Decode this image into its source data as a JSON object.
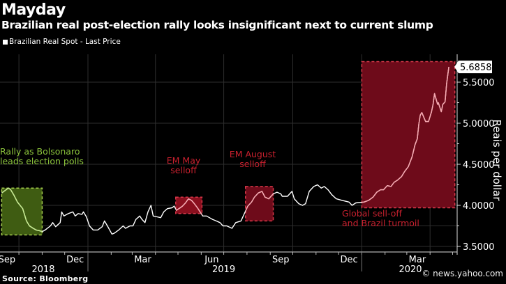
{
  "chart_data": {
    "type": "line",
    "title": "Mayday",
    "subtitle": "Brazilian real post-election rally looks insignificant next to current slump",
    "legend": [
      {
        "name": "Brazilian Real Spot - Last Price",
        "color": "#ffffff",
        "placement": "top-left"
      }
    ],
    "ylabel": "Reais per dollar",
    "ylim": [
      3.4,
      5.85
    ],
    "yticks": [
      "3.5000",
      "4.0000",
      "4.5000",
      "5.0000",
      "5.5000"
    ],
    "y_axis_side": "right",
    "grid": true,
    "xlim": [
      "2018-09-06",
      "2020-05-08"
    ],
    "xticks": [
      {
        "label": "Sep",
        "date": "2018-09-15"
      },
      {
        "label": "Dec",
        "date": "2018-12-15"
      },
      {
        "label": "Mar",
        "date": "2019-03-15"
      },
      {
        "label": "Jun",
        "date": "2019-06-15"
      },
      {
        "label": "Sep",
        "date": "2019-09-15"
      },
      {
        "label": "Dec",
        "date": "2019-12-15"
      },
      {
        "label": "Mar",
        "date": "2020-03-15"
      }
    ],
    "years": [
      {
        "label": "2018",
        "date": "2018-11-01"
      },
      {
        "label": "2019",
        "date": "2019-07-01"
      },
      {
        "label": "2020",
        "date": "2020-03-01"
      }
    ],
    "last_value_label": "5.6858",
    "series": [
      {
        "name": "Brazilian Real Spot - Last Price",
        "color": "#ffffff",
        "x": [
          "2018-09-08",
          "2018-09-11",
          "2018-09-17",
          "2018-09-20",
          "2018-09-24",
          "2018-09-29",
          "2018-10-06",
          "2018-10-11",
          "2018-10-15",
          "2018-10-20",
          "2018-10-24",
          "2018-10-29",
          "2018-11-01",
          "2018-11-05",
          "2018-11-12",
          "2018-11-15",
          "2018-11-19",
          "2018-11-25",
          "2018-11-27",
          "2018-11-30",
          "2018-12-06",
          "2018-12-12",
          "2018-12-15",
          "2018-12-19",
          "2018-12-24",
          "2018-12-26",
          "2018-12-30",
          "2019-01-03",
          "2019-01-08",
          "2019-01-14",
          "2019-01-20",
          "2019-01-23",
          "2019-01-27",
          "2019-02-02",
          "2019-02-05",
          "2019-02-11",
          "2019-02-17",
          "2019-02-20",
          "2019-02-26",
          "2019-03-02",
          "2019-03-06",
          "2019-03-11",
          "2019-03-14",
          "2019-03-18",
          "2019-03-22",
          "2019-03-26",
          "2019-03-29",
          "2019-04-03",
          "2019-04-08",
          "2019-04-12",
          "2019-04-17",
          "2019-04-23",
          "2019-04-26",
          "2019-04-29",
          "2019-05-04",
          "2019-05-07",
          "2019-05-11",
          "2019-05-15",
          "2019-05-19",
          "2019-05-22",
          "2019-05-27",
          "2019-06-03",
          "2019-06-08",
          "2019-06-12",
          "2019-06-16",
          "2019-06-21",
          "2019-06-26",
          "2019-06-30",
          "2019-07-05",
          "2019-07-12",
          "2019-07-17",
          "2019-07-24",
          "2019-07-28",
          "2019-08-02",
          "2019-08-07",
          "2019-08-11",
          "2019-08-16",
          "2019-08-21",
          "2019-08-25",
          "2019-08-30",
          "2019-09-05",
          "2019-09-10",
          "2019-09-15",
          "2019-09-17",
          "2019-09-24",
          "2019-09-30",
          "2019-10-03",
          "2019-10-09",
          "2019-10-14",
          "2019-10-18",
          "2019-10-23",
          "2019-10-29",
          "2019-11-03",
          "2019-11-08",
          "2019-11-12",
          "2019-11-17",
          "2019-11-22",
          "2019-11-28",
          "2019-12-06",
          "2019-12-15",
          "2019-12-19",
          "2019-12-24",
          "2020-01-04",
          "2020-01-10",
          "2020-01-16",
          "2020-01-21",
          "2020-01-26",
          "2020-01-30",
          "2020-02-04",
          "2020-02-09",
          "2020-02-13",
          "2020-02-18",
          "2020-02-23",
          "2020-02-27",
          "2020-03-03",
          "2020-03-08",
          "2020-03-12",
          "2020-03-15",
          "2020-03-17",
          "2020-03-19",
          "2020-03-21",
          "2020-03-26",
          "2020-03-30",
          "2020-04-03",
          "2020-04-05",
          "2020-04-07",
          "2020-04-11",
          "2020-04-12",
          "2020-04-16",
          "2020-04-18",
          "2020-04-21",
          "2020-04-23",
          "2020-04-26"
        ],
        "y": [
          4.15,
          4.17,
          4.21,
          4.19,
          4.13,
          4.04,
          3.96,
          3.81,
          3.75,
          3.72,
          3.7,
          3.69,
          3.68,
          3.7,
          3.75,
          3.79,
          3.74,
          3.79,
          3.92,
          3.87,
          3.9,
          3.92,
          3.87,
          3.9,
          3.89,
          3.92,
          3.86,
          3.75,
          3.7,
          3.7,
          3.74,
          3.81,
          3.75,
          3.65,
          3.66,
          3.7,
          3.75,
          3.72,
          3.75,
          3.75,
          3.83,
          3.87,
          3.83,
          3.79,
          3.92,
          4.0,
          3.87,
          3.86,
          3.85,
          3.92,
          3.96,
          3.97,
          3.99,
          3.94,
          3.97,
          3.99,
          4.03,
          4.08,
          4.06,
          4.03,
          3.97,
          3.87,
          3.87,
          3.85,
          3.83,
          3.81,
          3.79,
          3.75,
          3.75,
          3.72,
          3.79,
          3.81,
          3.89,
          3.99,
          4.04,
          4.1,
          4.15,
          4.17,
          4.1,
          4.08,
          4.14,
          4.16,
          4.14,
          4.11,
          4.11,
          4.17,
          4.08,
          4.02,
          4.0,
          4.02,
          4.17,
          4.23,
          4.25,
          4.21,
          4.23,
          4.19,
          4.13,
          4.08,
          4.06,
          4.04,
          4.0,
          4.03,
          4.04,
          4.06,
          4.1,
          4.16,
          4.19,
          4.19,
          4.24,
          4.23,
          4.28,
          4.31,
          4.35,
          4.41,
          4.47,
          4.59,
          4.74,
          4.81,
          4.99,
          5.1,
          5.13,
          5.02,
          5.02,
          5.14,
          5.23,
          5.36,
          5.23,
          5.25,
          5.14,
          5.23,
          5.26,
          5.48,
          5.6858
        ]
      }
    ],
    "annotations": [
      {
        "text_lines": [
          "Rally as Bolsonaro",
          "leads election polls"
        ],
        "color": "#8cc43c",
        "line_color": "#c6ec8e",
        "fill": "#3f5c12",
        "border": "#a4cc4c",
        "x_range": [
          "2018-09-08",
          "2018-11-01"
        ],
        "y_range": [
          3.64,
          4.21
        ]
      },
      {
        "text_lines": [
          "EM May",
          "selloff"
        ],
        "color": "#c8202e",
        "line_color": "#f7a8b0",
        "fill": "#8a0f1e",
        "border": "#d8384a",
        "x_range": [
          "2019-04-28",
          "2019-06-02"
        ],
        "y_range": [
          3.9,
          4.1
        ]
      },
      {
        "text_lines": [
          "EM August",
          "selloff"
        ],
        "color": "#c8202e",
        "line_color": "#f7a8b0",
        "fill": "#6e0b1a",
        "border": "#d8384a",
        "x_range": [
          "2019-07-30",
          "2019-09-05"
        ],
        "y_range": [
          3.81,
          4.23
        ]
      },
      {
        "text_lines": [
          "Global sell-off",
          "and Brazil turmoil"
        ],
        "color": "#c8202e",
        "line_color": "#f7a8b0",
        "fill": "#6e0b1a",
        "border": "#d8384a",
        "x_range": [
          "2020-01-01",
          "2020-05-04"
        ],
        "y_range": [
          3.97,
          5.75
        ]
      }
    ]
  },
  "source": "Source: Bloomberg",
  "credit": "© news.yahoo.com"
}
